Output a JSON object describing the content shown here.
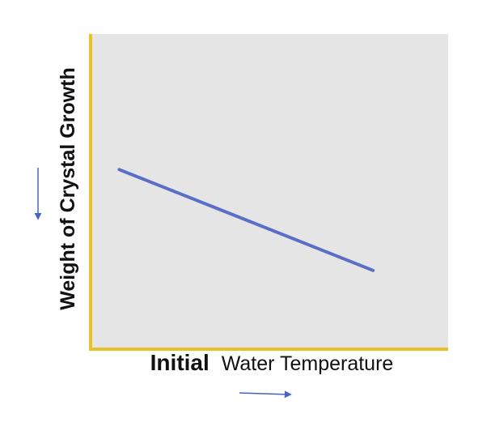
{
  "chart_data": {
    "type": "line",
    "title": "",
    "xlabel": {
      "first_word": "Initial",
      "rest": "Water Temperature"
    },
    "ylabel": "Weight  of Crystal Growth",
    "series": [
      {
        "x": [
          0.08,
          0.79
        ],
        "y": [
          0.57,
          0.25
        ]
      }
    ],
    "xlim": [
      0,
      1
    ],
    "ylim": [
      0,
      1
    ],
    "grid": false,
    "legend": "none",
    "colors": {
      "plot_background": "#e5e5e5",
      "axis": "#e8c12a",
      "line": "#5a6ec8",
      "arrow": "#4a62c4",
      "text": "#111111"
    }
  }
}
